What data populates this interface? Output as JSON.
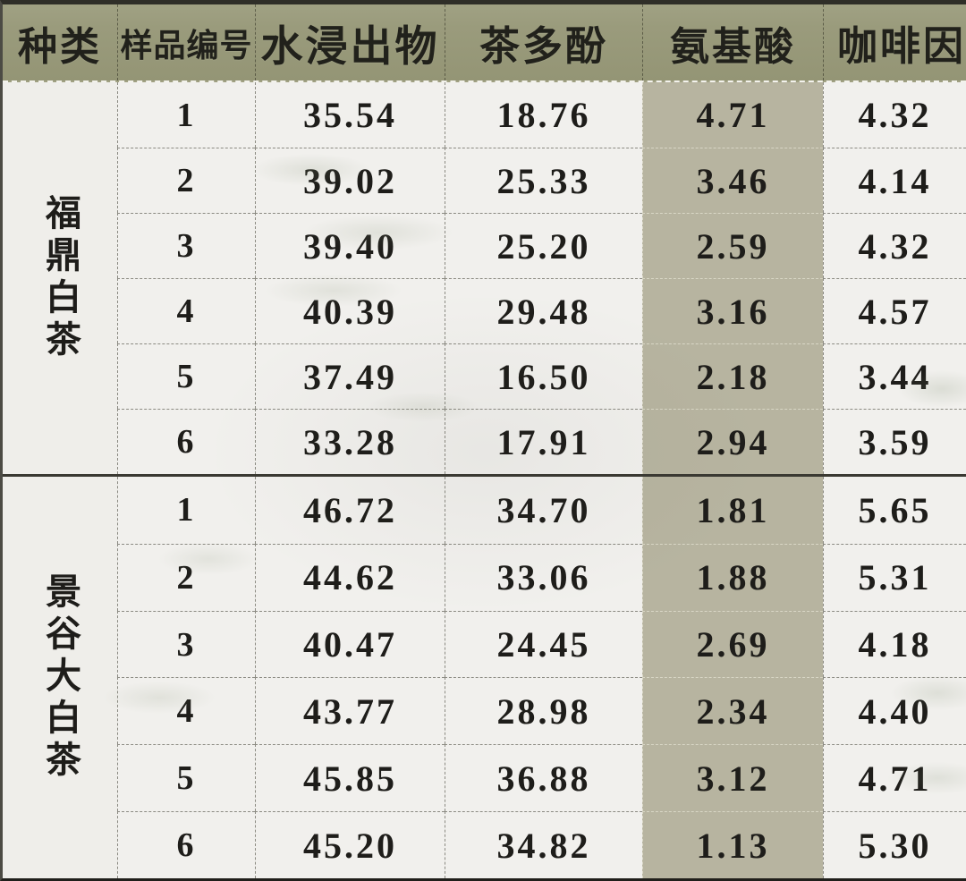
{
  "table": {
    "columns": [
      {
        "key": "category",
        "label": "种类"
      },
      {
        "key": "sample_no",
        "label": "样品编号"
      },
      {
        "key": "water_extract",
        "label": "水浸出物"
      },
      {
        "key": "polyphenols",
        "label": "茶多酚"
      },
      {
        "key": "amino_acids",
        "label": "氨基酸",
        "highlight": true
      },
      {
        "key": "caffeine",
        "label": "咖啡因"
      }
    ],
    "groups": [
      {
        "category": "福鼎白茶",
        "rows": [
          {
            "sample": "1",
            "values": [
              "35.54",
              "18.76",
              "4.71",
              "4.32"
            ]
          },
          {
            "sample": "2",
            "values": [
              "39.02",
              "25.33",
              "3.46",
              "4.14"
            ]
          },
          {
            "sample": "3",
            "values": [
              "39.40",
              "25.20",
              "2.59",
              "4.32"
            ]
          },
          {
            "sample": "4",
            "values": [
              "40.39",
              "29.48",
              "3.16",
              "4.57"
            ]
          },
          {
            "sample": "5",
            "values": [
              "37.49",
              "16.50",
              "2.18",
              "3.44"
            ]
          },
          {
            "sample": "6",
            "values": [
              "33.28",
              "17.91",
              "2.94",
              "3.59"
            ]
          }
        ]
      },
      {
        "category": "景谷大白茶",
        "rows": [
          {
            "sample": "1",
            "values": [
              "46.72",
              "34.70",
              "1.81",
              "5.65"
            ]
          },
          {
            "sample": "2",
            "values": [
              "44.62",
              "33.06",
              "1.88",
              "5.31"
            ]
          },
          {
            "sample": "3",
            "values": [
              "40.47",
              "24.45",
              "2.69",
              "4.18"
            ]
          },
          {
            "sample": "4",
            "values": [
              "43.77",
              "28.98",
              "2.34",
              "4.40"
            ]
          },
          {
            "sample": "5",
            "values": [
              "45.85",
              "36.88",
              "3.12",
              "4.71"
            ]
          },
          {
            "sample": "6",
            "values": [
              "45.20",
              "34.82",
              "1.13",
              "5.30"
            ]
          }
        ]
      }
    ]
  },
  "colors": {
    "header_bg": "#9a9b7c",
    "highlight_column_bg": "#b7b4a0",
    "cell_bg": "#f1f0ed",
    "text": "#1e1d1a",
    "dashed_border": "#8b8a82",
    "frame": "#2f2e28"
  }
}
